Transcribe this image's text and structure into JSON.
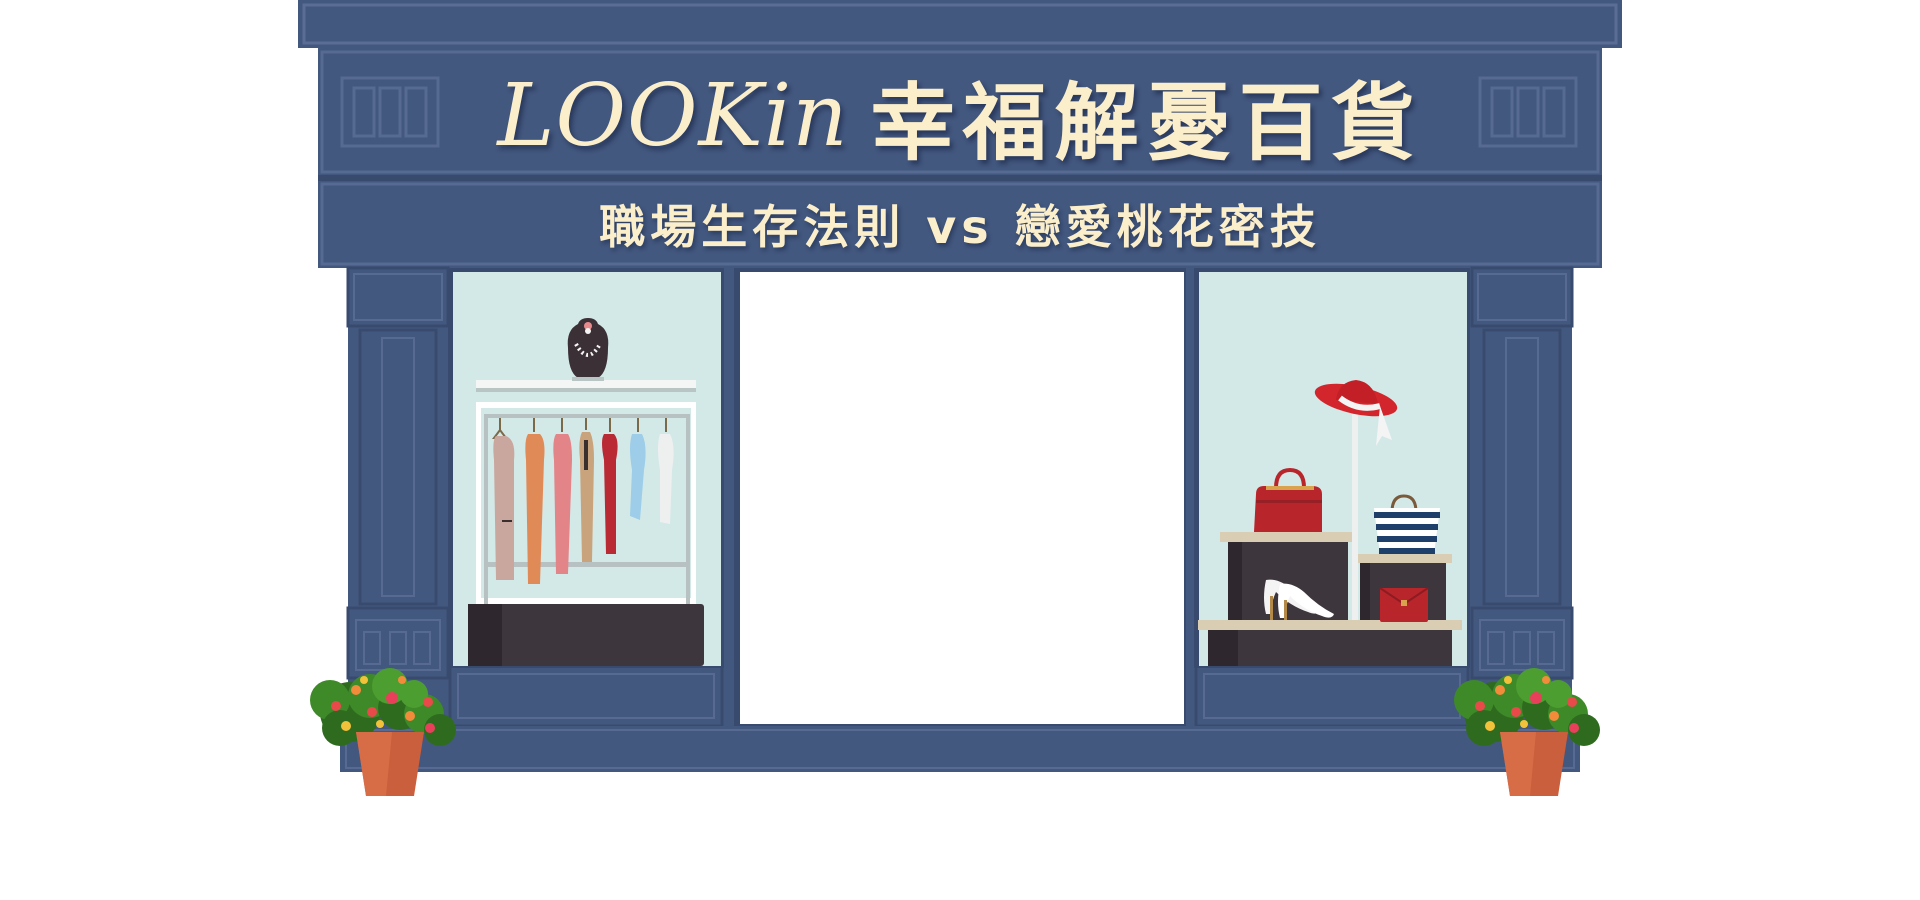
{
  "sign": {
    "brand": "LOOKin",
    "title": "幸福解憂百貨",
    "subtitle": "職場生存法則 vs 戀愛桃花密技"
  },
  "colors": {
    "facade": "#43587f",
    "facade_dark": "#384b6f",
    "sign_text": "#fbeecb",
    "window_glass": "#d3e9e7",
    "door": "#ffffff",
    "furniture": "#3e363d",
    "flower_pot": "#c95f3c"
  },
  "icons": {
    "left_window": [
      "necklace-bust-icon",
      "clothing-rack-icon"
    ],
    "right_window": [
      "red-hat-icon",
      "red-handbag-icon",
      "striped-bag-icon",
      "high-heel-shoes-icon",
      "red-wallet-icon"
    ],
    "decor": [
      "flower-pot-icon",
      "flower-pot-icon"
    ]
  }
}
